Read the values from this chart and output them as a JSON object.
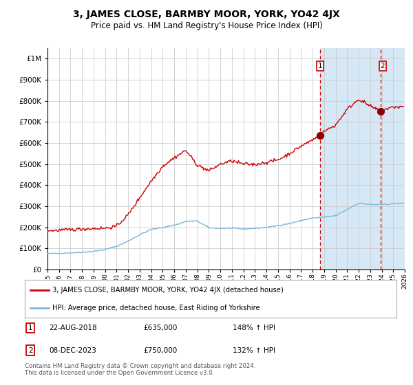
{
  "title": "3, JAMES CLOSE, BARMBY MOOR, YORK, YO42 4JX",
  "subtitle": "Price paid vs. HM Land Registry's House Price Index (HPI)",
  "legend_line1": "3, JAMES CLOSE, BARMBY MOOR, YORK, YO42 4JX (detached house)",
  "legend_line2": "HPI: Average price, detached house, East Riding of Yorkshire",
  "footnote": "Contains HM Land Registry data © Crown copyright and database right 2024.\nThis data is licensed under the Open Government Licence v3.0.",
  "annotation1": {
    "label": "1",
    "date": "22-AUG-2018",
    "price": "£635,000",
    "hpi": "148% ↑ HPI"
  },
  "annotation2": {
    "label": "2",
    "date": "08-DEC-2023",
    "price": "£750,000",
    "hpi": "132% ↑ HPI"
  },
  "hpi_line_color": "#7ab8d9",
  "price_line_color": "#cc0000",
  "dot_color": "#8b0000",
  "vline_color": "#cc0000",
  "background_color": "#ffffff",
  "plot_bg_color": "#ffffff",
  "shade_color": "#d6e8f5",
  "grid_color": "#cccccc",
  "title_fontsize": 10,
  "subtitle_fontsize": 8.5,
  "ylim": [
    0,
    1050000
  ],
  "yticks": [
    0,
    100000,
    200000,
    300000,
    400000,
    500000,
    600000,
    700000,
    800000,
    900000,
    1000000
  ],
  "year_start": 1995,
  "year_end": 2026,
  "sale1_year": 2018.644,
  "sale2_year": 2023.934
}
